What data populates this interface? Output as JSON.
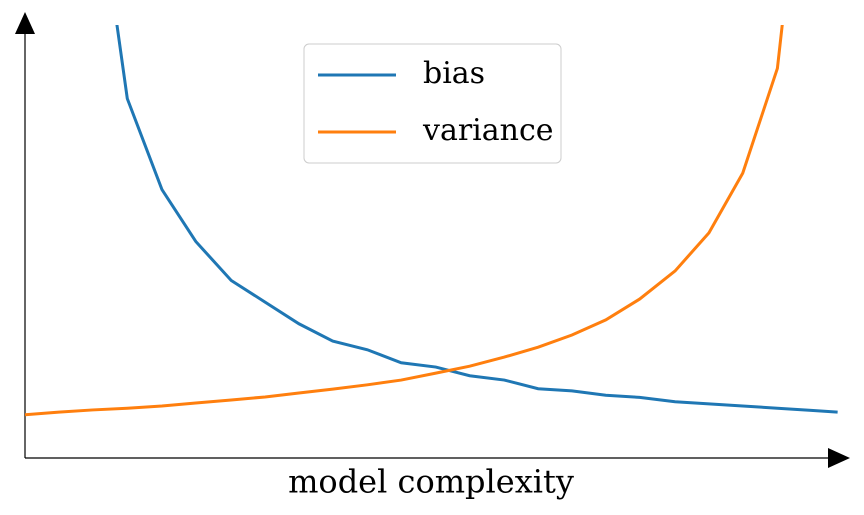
{
  "chart_data": {
    "type": "line",
    "xlabel": "model complexity",
    "x": [
      0,
      0.041,
      0.082,
      0.124,
      0.166,
      0.207,
      0.25,
      0.291,
      0.332,
      0.373,
      0.415,
      0.456,
      0.498,
      0.539,
      0.581,
      0.622,
      0.663,
      0.704,
      0.745,
      0.788,
      0.829,
      0.87,
      0.912,
      0.953,
      0.985
    ],
    "series": [
      {
        "name": "bias",
        "color": "#1f77b4",
        "values": [
          null,
          null,
          1.4,
          0.83,
          0.62,
          0.5,
          0.41,
          0.36,
          0.31,
          0.27,
          0.25,
          0.22,
          0.21,
          0.19,
          0.18,
          0.16,
          0.155,
          0.145,
          0.14,
          0.13,
          0.125,
          0.12,
          0.115,
          0.11,
          0.106
        ]
      },
      {
        "name": "variance",
        "color": "#ff7f0e",
        "values": [
          0.1,
          0.106,
          0.111,
          0.115,
          0.12,
          0.127,
          0.134,
          0.141,
          0.15,
          0.159,
          0.169,
          0.18,
          0.196,
          0.212,
          0.233,
          0.256,
          0.284,
          0.319,
          0.367,
          0.432,
          0.52,
          0.658,
          0.9,
          1.6,
          null
        ]
      }
    ],
    "xlim": [
      0,
      1
    ],
    "ylim": [
      0,
      1
    ],
    "legend": "upper center"
  }
}
